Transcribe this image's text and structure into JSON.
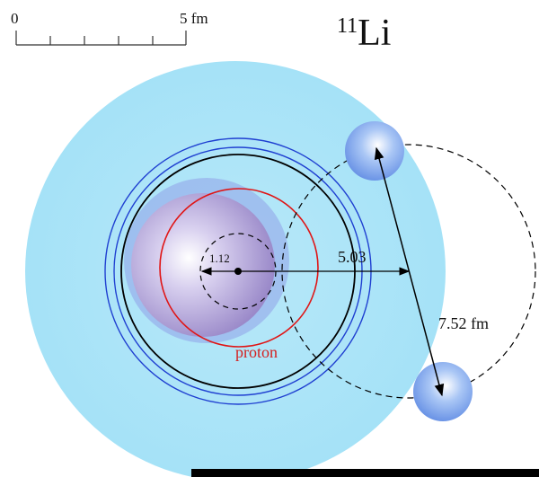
{
  "scale_bar": {
    "zero_label": "0",
    "end_label": "5 fm"
  },
  "title": {
    "mass_number": "11",
    "element": "Li"
  },
  "labels": {
    "core_radius": "1.12",
    "halo_distance": "5.03",
    "neutron_separation": "7.52 fm",
    "proton": "proton"
  },
  "colors": {
    "halo": "#a5e2f7",
    "core": "#b7a9dc",
    "proton_circle": "#e01515",
    "matter_circle_outer": "#1f3fd1",
    "matter_circle_inner": "#000000",
    "neutron": "#86aef0",
    "accent_text": "#d42020"
  }
}
